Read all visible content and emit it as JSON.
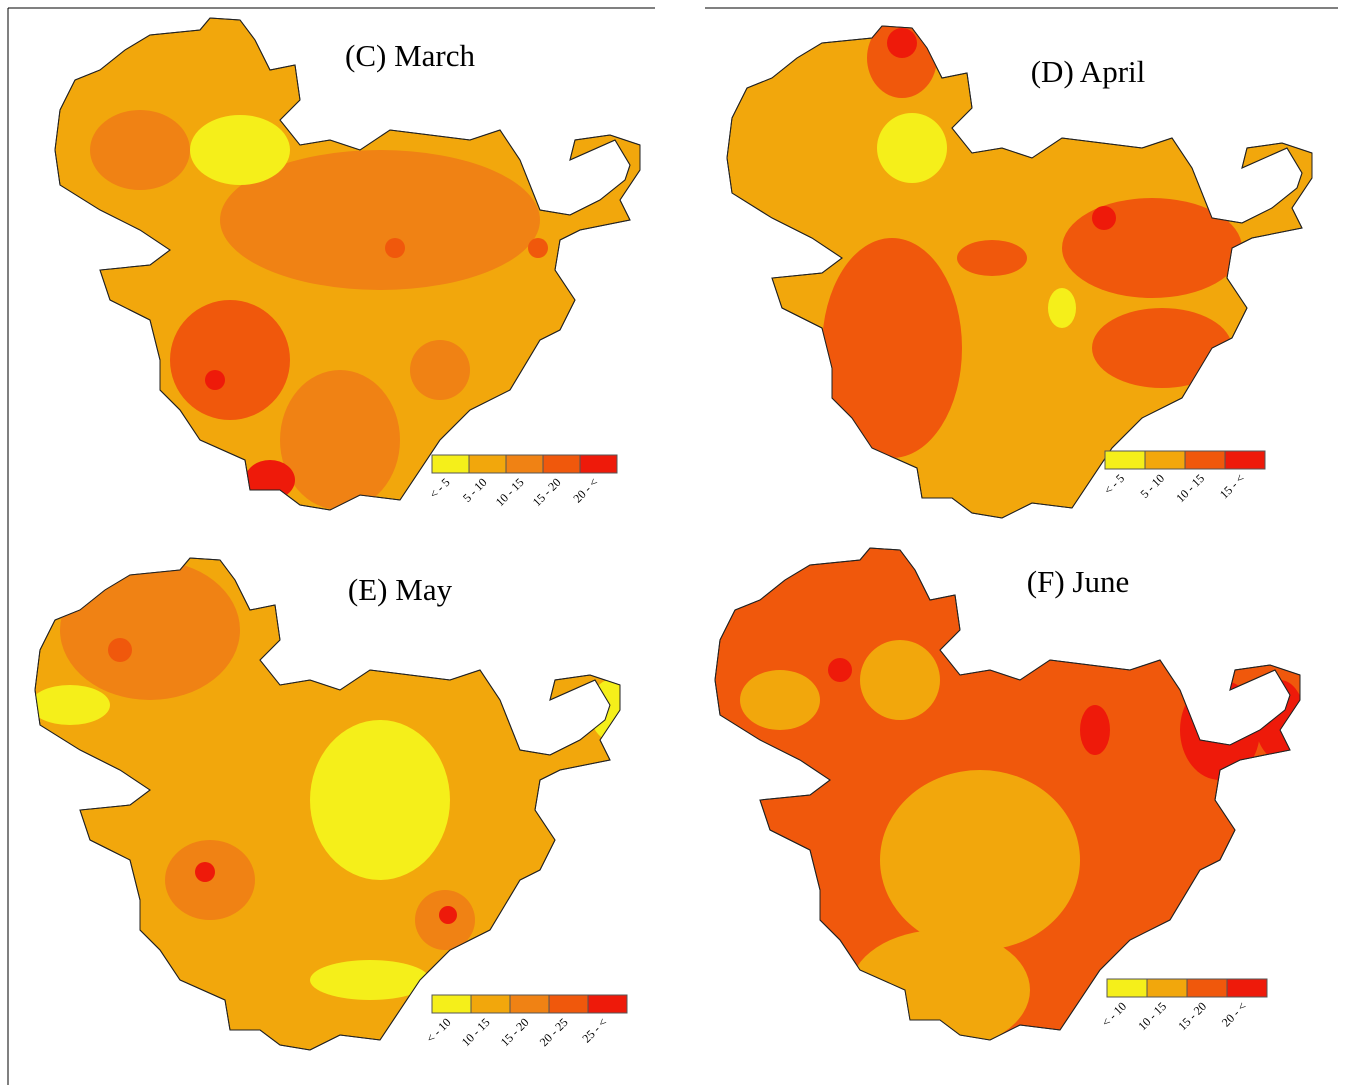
{
  "panels": [
    {
      "title": "(C) March",
      "legend": [
        {
          "label": "< - 5",
          "color": "#f5ef1a"
        },
        {
          "label": "5 - 10",
          "color": "#f2a70c"
        },
        {
          "label": "10 - 15",
          "color": "#f08214"
        },
        {
          "label": "15 - 20",
          "color": "#f0580c"
        },
        {
          "label": "20 - <",
          "color": "#ee1a0a"
        }
      ]
    },
    {
      "title": "(D) April",
      "legend": [
        {
          "label": "< - 5",
          "color": "#f5ef1a"
        },
        {
          "label": "5 - 10",
          "color": "#f2a70c"
        },
        {
          "label": "10 - 15",
          "color": "#f0580c"
        },
        {
          "label": "15 - <",
          "color": "#ee1a0a"
        }
      ]
    },
    {
      "title": "(E) May",
      "legend": [
        {
          "label": "< - 10",
          "color": "#f5ef1a"
        },
        {
          "label": "10 - 15",
          "color": "#f2a70c"
        },
        {
          "label": "15 - 20",
          "color": "#f08214"
        },
        {
          "label": "20 - 25",
          "color": "#f0580c"
        },
        {
          "label": "25 - <",
          "color": "#ee1a0a"
        }
      ]
    },
    {
      "title": "(F) June",
      "legend": [
        {
          "label": "< - 10",
          "color": "#f5ef1a"
        },
        {
          "label": "10 - 15",
          "color": "#f2a70c"
        },
        {
          "label": "15 - 20",
          "color": "#f0580c"
        },
        {
          "label": "20 - <",
          "color": "#ee1a0a"
        }
      ]
    }
  ]
}
